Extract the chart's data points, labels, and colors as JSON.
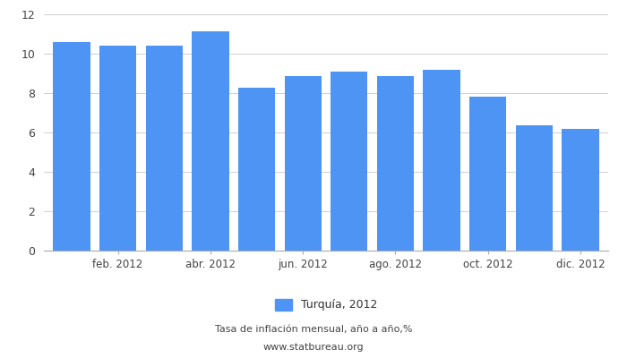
{
  "x_tick_labels": [
    "feb. 2012",
    "abr. 2012",
    "jun. 2012",
    "ago. 2012",
    "oct. 2012",
    "dic. 2012"
  ],
  "x_tick_positions": [
    1,
    3,
    5,
    7,
    9,
    11
  ],
  "values": [
    10.61,
    10.43,
    10.43,
    11.14,
    8.28,
    8.87,
    9.07,
    8.88,
    9.19,
    7.8,
    6.37,
    6.16
  ],
  "bar_color": "#4d94f5",
  "ylim": [
    0,
    12
  ],
  "yticks": [
    0,
    2,
    4,
    6,
    8,
    10,
    12
  ],
  "legend_label": "Turquía, 2012",
  "subtitle1": "Tasa de inflación mensual, año a año,%",
  "subtitle2": "www.statbureau.org",
  "background_color": "#ffffff",
  "grid_color": "#d0d0d0"
}
